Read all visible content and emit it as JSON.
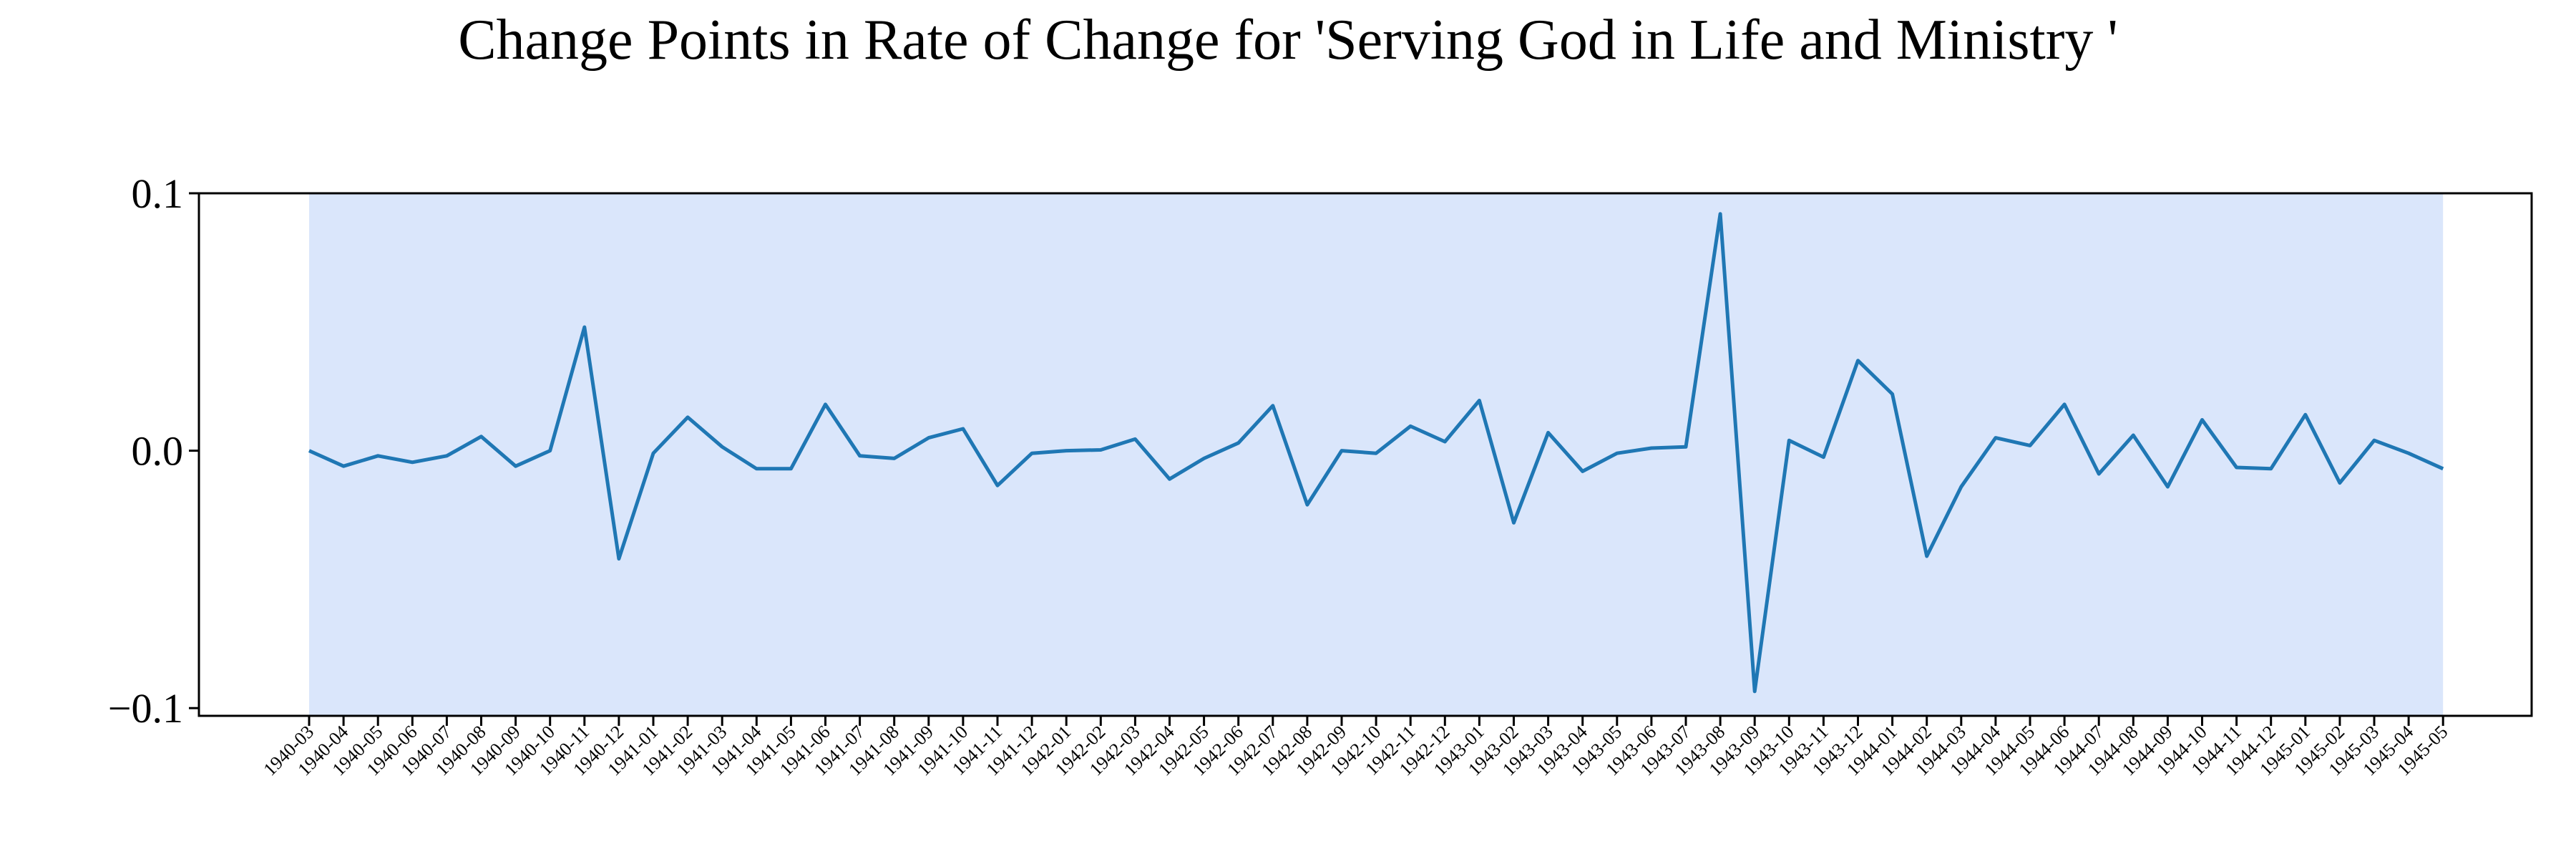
{
  "chart_data": {
    "type": "line",
    "title": "Change Points in Rate of Change for 'Serving God in Life and Ministry '",
    "xlabel": "",
    "ylabel": "",
    "ylim": [
      -0.103,
      0.1
    ],
    "yticks": [
      0.1,
      0.0,
      -0.1
    ],
    "ytick_labels": [
      "0.1",
      "0.0",
      "−0.1"
    ],
    "grid": false,
    "legend": "none",
    "colors": {
      "line": "#1f77b4",
      "span": "#dae6fb",
      "axes": "#000000"
    },
    "shaded_span": {
      "from": "1940-03",
      "to": "1945-05"
    },
    "x": [
      "1940-03",
      "1940-04",
      "1940-05",
      "1940-06",
      "1940-07",
      "1940-08",
      "1940-09",
      "1940-10",
      "1940-11",
      "1940-12",
      "1941-01",
      "1941-02",
      "1941-03",
      "1941-04",
      "1941-05",
      "1941-06",
      "1941-07",
      "1941-08",
      "1941-09",
      "1941-10",
      "1941-11",
      "1941-12",
      "1942-01",
      "1942-02",
      "1942-03",
      "1942-04",
      "1942-05",
      "1942-06",
      "1942-07",
      "1942-08",
      "1942-09",
      "1942-10",
      "1942-11",
      "1942-12",
      "1943-01",
      "1943-02",
      "1943-03",
      "1943-04",
      "1943-05",
      "1943-06",
      "1943-07",
      "1943-08",
      "1943-09",
      "1943-10",
      "1943-11",
      "1943-12",
      "1944-01",
      "1944-02",
      "1944-03",
      "1944-04",
      "1944-05",
      "1944-06",
      "1944-07",
      "1944-08",
      "1944-09",
      "1944-10",
      "1944-11",
      "1944-12",
      "1945-01",
      "1945-02",
      "1945-03",
      "1945-04",
      "1945-05"
    ],
    "series": [
      {
        "values": [
          0.0,
          -0.006,
          -0.002,
          -0.0045,
          -0.002,
          0.0055,
          -0.006,
          0.0,
          0.048,
          -0.042,
          -0.001,
          0.013,
          0.0015,
          -0.007,
          -0.007,
          0.018,
          -0.002,
          -0.003,
          0.005,
          0.0085,
          -0.0135,
          -0.001,
          0.0,
          0.0003,
          0.0045,
          -0.011,
          -0.003,
          0.003,
          0.0175,
          -0.021,
          0.0,
          -0.001,
          0.0095,
          0.0035,
          0.0195,
          -0.028,
          0.007,
          -0.008,
          -0.001,
          0.001,
          0.0015,
          0.092,
          -0.0935,
          0.004,
          -0.0025,
          0.035,
          0.022,
          -0.041,
          -0.014,
          0.005,
          0.002,
          0.018,
          -0.009,
          0.006,
          -0.014,
          0.012,
          -0.0065,
          -0.007,
          0.014,
          -0.0125,
          0.004,
          -0.001,
          -0.007
        ]
      }
    ]
  }
}
